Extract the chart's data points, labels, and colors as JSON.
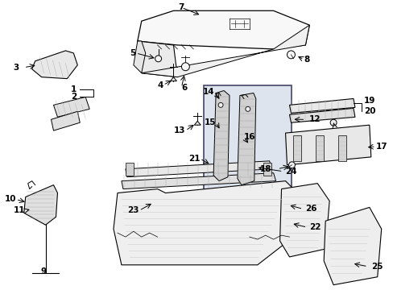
{
  "bg_color": "#ffffff",
  "fig_width": 4.89,
  "fig_height": 3.6,
  "dpi": 100,
  "line_color": "#000000",
  "font_size": 7.5,
  "font_color": "#000000",
  "box_color": "#dde4ee"
}
